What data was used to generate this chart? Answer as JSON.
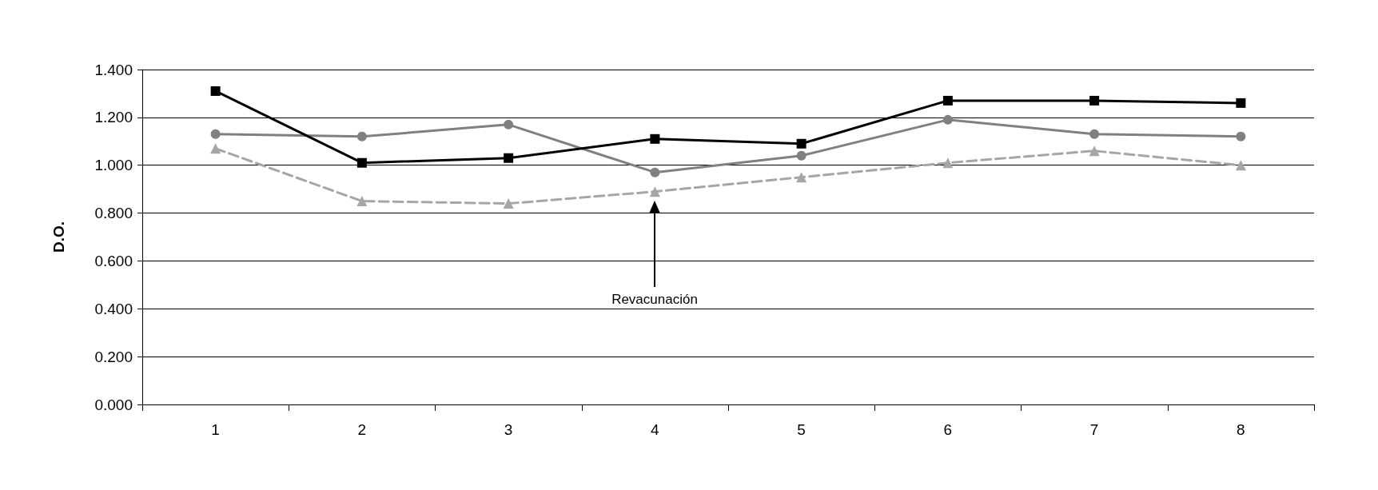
{
  "chart_data": {
    "type": "line",
    "ylabel": "D.O.",
    "categories": [
      "1",
      "2",
      "3",
      "4",
      "5",
      "6",
      "7",
      "8"
    ],
    "series": [
      {
        "color": "#000000",
        "marker": "square",
        "line_style": "solid",
        "values": [
          1.31,
          1.01,
          1.03,
          1.11,
          1.09,
          1.27,
          1.27,
          1.26
        ]
      },
      {
        "color": "#808080",
        "marker": "circle",
        "line_style": "solid",
        "values": [
          1.13,
          1.12,
          1.17,
          0.97,
          1.04,
          1.19,
          1.13,
          1.12
        ]
      },
      {
        "color": "#a6a6a6",
        "marker": "triangle",
        "line_style": "dashed",
        "values": [
          1.07,
          0.85,
          0.84,
          0.89,
          0.95,
          1.01,
          1.06,
          1.0
        ]
      }
    ],
    "ylim": [
      0,
      1.4
    ],
    "yticks": [
      {
        "value": 0,
        "label": "0.000"
      },
      {
        "value": 0.2,
        "label": "0.200"
      },
      {
        "value": 0.4,
        "label": "0.400"
      },
      {
        "value": 0.6,
        "label": "0.600"
      },
      {
        "value": 0.8,
        "label": "0.800"
      },
      {
        "value": 1.0,
        "label": "1.000"
      },
      {
        "value": 1.2,
        "label": "1.200"
      },
      {
        "value": 1.4,
        "label": "1.400"
      }
    ],
    "grid": "y",
    "annotations": [
      "Revacunación"
    ]
  }
}
